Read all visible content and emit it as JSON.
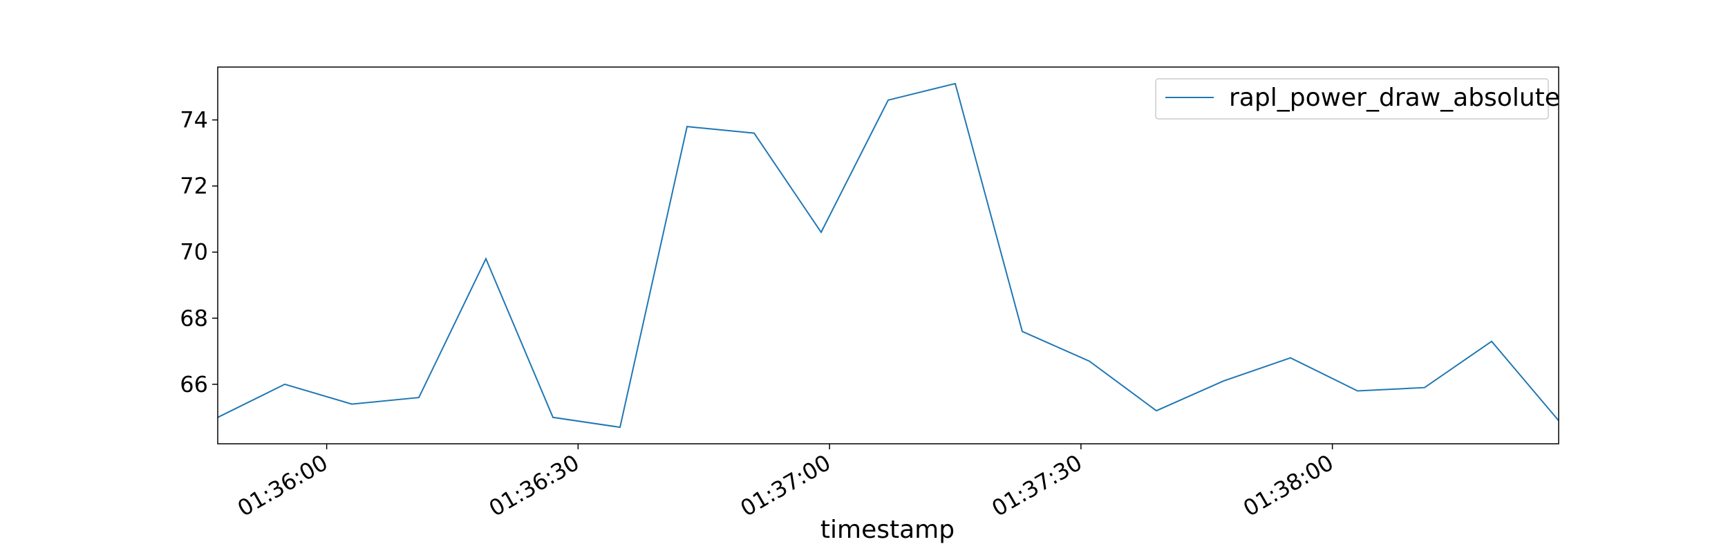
{
  "chart_data": {
    "type": "line",
    "xlabel": "timestamp",
    "ylabel": "",
    "x": [
      "01:35:47",
      "01:35:55",
      "01:36:03",
      "01:36:11",
      "01:36:19",
      "01:36:27",
      "01:36:35",
      "01:36:43",
      "01:36:51",
      "01:36:59",
      "01:37:07",
      "01:37:15",
      "01:37:23",
      "01:37:31",
      "01:37:39",
      "01:37:47",
      "01:37:55",
      "01:38:03",
      "01:38:11",
      "01:38:19",
      "01:38:27"
    ],
    "series": [
      {
        "name": "rapl_power_draw_absolute",
        "color": "#1f77b4",
        "values": [
          65.0,
          66.0,
          65.4,
          65.6,
          69.8,
          65.0,
          64.7,
          73.8,
          73.6,
          70.6,
          74.6,
          75.1,
          67.6,
          66.7,
          65.2,
          66.1,
          66.8,
          65.8,
          65.9,
          67.3,
          64.9
        ]
      }
    ],
    "xlim": [
      "01:35:47",
      "01:38:27"
    ],
    "ylim": [
      64.2,
      75.6
    ],
    "xticks": [
      "01:36:00",
      "01:36:30",
      "01:37:00",
      "01:37:30",
      "01:38:00"
    ],
    "yticks": [
      66,
      68,
      70,
      72,
      74
    ],
    "grid": false,
    "legend_position": "top-right"
  }
}
